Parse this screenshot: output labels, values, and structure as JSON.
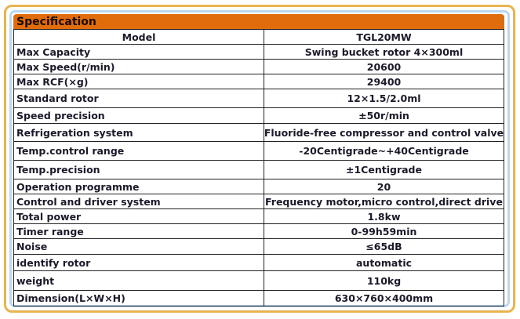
{
  "title": "Specification",
  "header": {
    "label": "Model",
    "value": "TGL20MW"
  },
  "rows": [
    {
      "label": "Max Capacity",
      "value": "Swing bucket rotor 4×300ml"
    },
    {
      "label": "Max Speed(r/min)",
      "value": "20600"
    },
    {
      "label": "Max RCF(×g)",
      "value": "29400"
    },
    {
      "label": "Standard rotor",
      "value": "12×1.5/2.0ml"
    },
    {
      "label": "Speed precision",
      "value": "±50r/min"
    },
    {
      "label": "Refrigeration system",
      "value": "Fluoride-free compressor and control valve"
    },
    {
      "label": "Temp.control range",
      "value": "-20Centigrade~+40Centigrade"
    },
    {
      "label": "Temp.precision",
      "value": "±1Centigrade"
    },
    {
      "label": "Operation programme",
      "value": "20"
    },
    {
      "label": "Control and driver system",
      "value": "Frequency motor,micro control,direct drive"
    },
    {
      "label": "Total power",
      "value": "1.8kw"
    },
    {
      "label": "Timer range",
      "value": "0-99h59min"
    },
    {
      "label": "Noise",
      "value": "≤65dB"
    },
    {
      "label": "identify rotor",
      "value": "automatic"
    },
    {
      "label": "weight",
      "value": "110kg"
    },
    {
      "label": "Dimension(L×W×H)",
      "value": "630×760×400mm"
    }
  ]
}
